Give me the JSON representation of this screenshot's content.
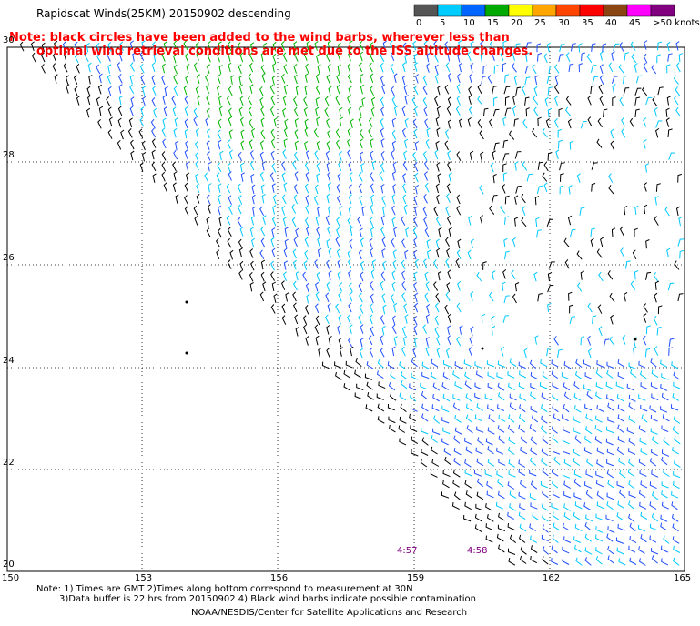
{
  "title": "Rapidscat Winds(25KM) 20150902 descending",
  "note": {
    "line1": "Note: black circles have been added to the wind barbs, wherever less than",
    "line2": "optimal wind retrieval conditions are met due to the ISS altitude changes."
  },
  "legend": {
    "units": "knots",
    "labels": [
      "0",
      "5",
      "10",
      "15",
      "20",
      "25",
      "30",
      "35",
      "40",
      "45",
      ">50 knots"
    ],
    "colors": [
      "#555555",
      "#00ccff",
      "#0066ff",
      "#00aa00",
      "#ffff00",
      "#ffa500",
      "#ff4500",
      "#ff0000",
      "#8b4513",
      "#ff00ff",
      "#800080"
    ]
  },
  "axes": {
    "x_ticks": [
      "150",
      "153",
      "156",
      "159",
      "162",
      "165"
    ],
    "y_ticks": [
      "20",
      "22",
      "24",
      "26",
      "28",
      "30"
    ]
  },
  "times": [
    {
      "label": "4:57"
    },
    {
      "label": "4:58"
    }
  ],
  "footer": {
    "line1": "Note: 1) Times are GMT 2)Times along bottom correspond to measurement at 30N",
    "line2": "3)Data buffer is 22 hrs from 20150902 4) Black wind barbs indicate possible contamination",
    "line3": "NOAA/NESDIS/Center for Satellite Applications and Research"
  },
  "barb_colors": {
    "black": "#000000",
    "light_blue": "#00c8ff",
    "blue": "#1f4fff",
    "green": "#00b400"
  }
}
